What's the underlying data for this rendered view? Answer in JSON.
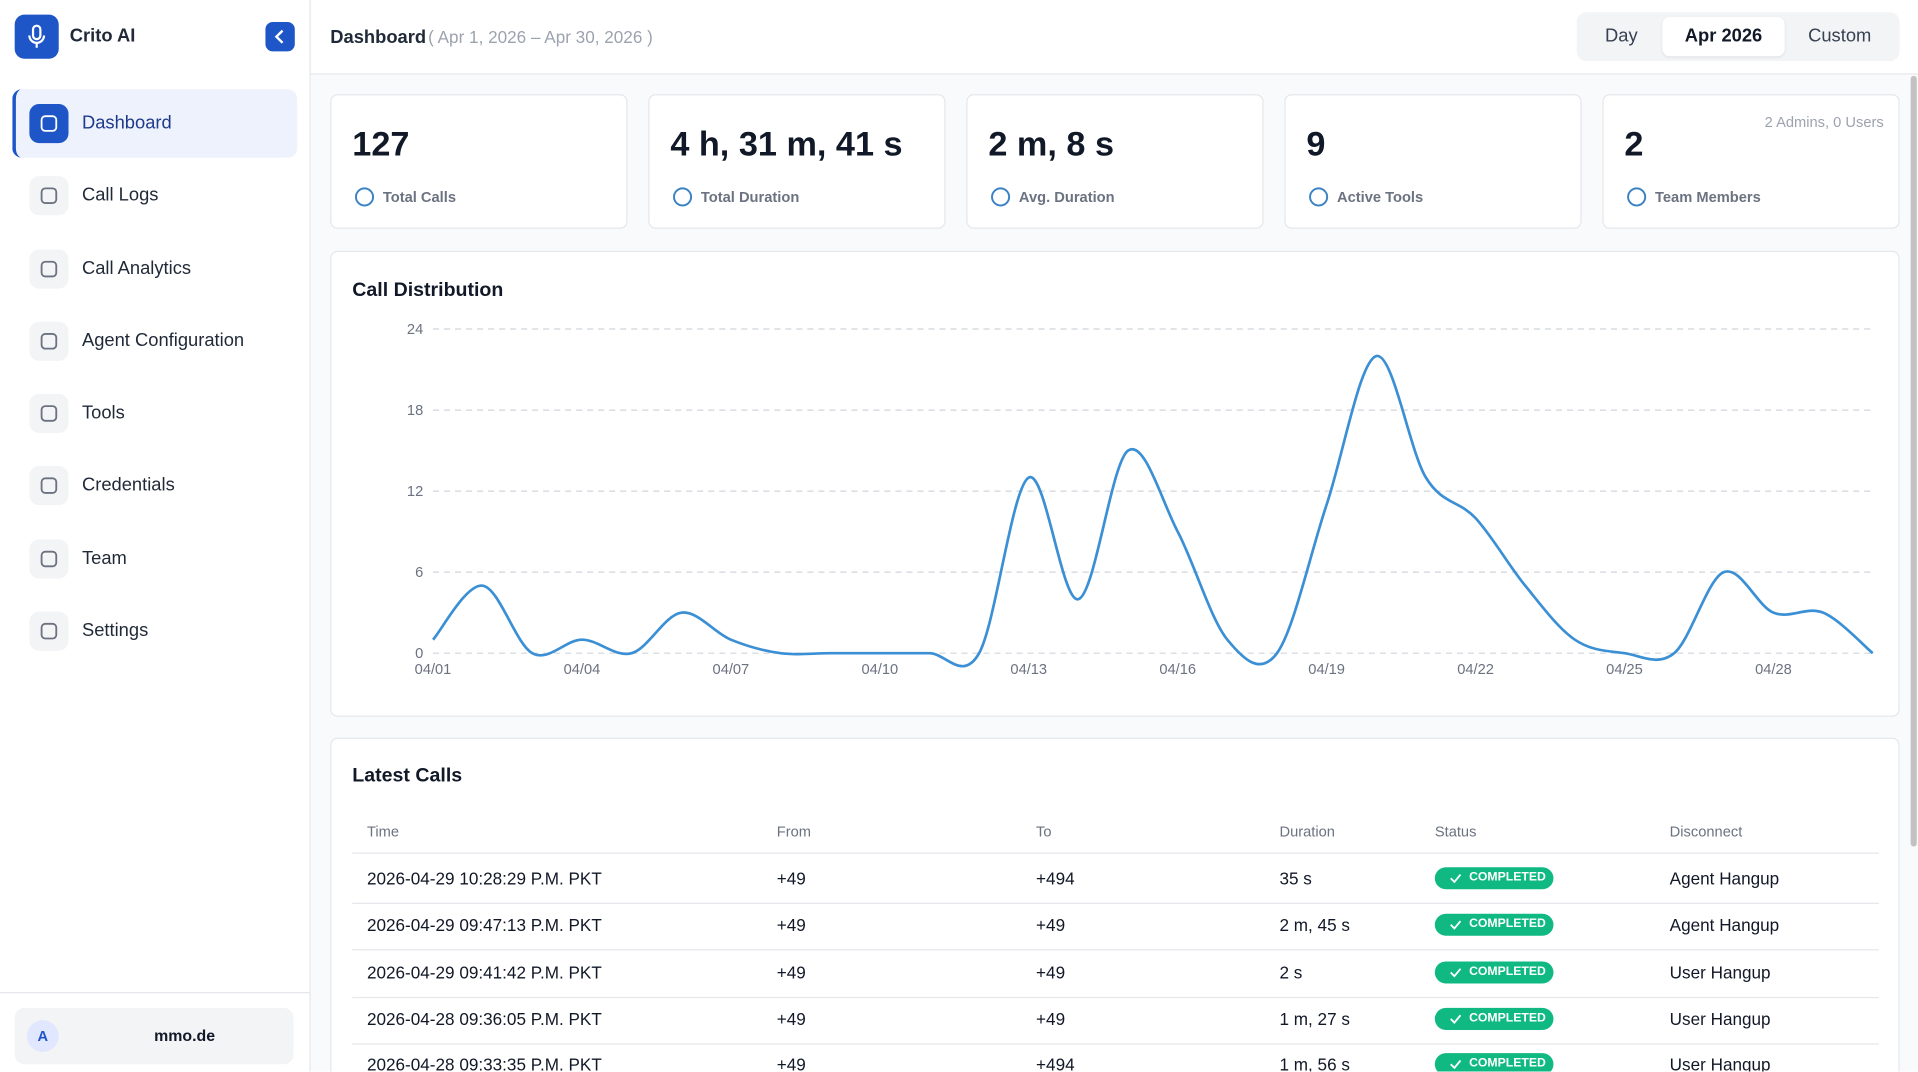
{
  "brand": "Crito AI",
  "nav": [
    {
      "label": "Dashboard",
      "active": true
    },
    {
      "label": "Call Logs"
    },
    {
      "label": "Call Analytics"
    },
    {
      "label": "Agent Configuration"
    },
    {
      "label": "Tools"
    },
    {
      "label": "Credentials"
    },
    {
      "label": "Team"
    },
    {
      "label": "Settings"
    }
  ],
  "user": {
    "initial": "A",
    "email": "mmo.de"
  },
  "header": {
    "title": "Dashboard",
    "range": "( Apr 1, 2026 – Apr 30, 2026 )",
    "periods": [
      "Day",
      "Apr 2026",
      "Custom"
    ],
    "active_period": 1
  },
  "stats": [
    {
      "value": "127",
      "label": "Total Calls"
    },
    {
      "value": "4 h, 31 m, 41 s",
      "label": "Total Duration"
    },
    {
      "value": "2 m, 8 s",
      "label": "Avg. Duration"
    },
    {
      "value": "9",
      "label": "Active Tools"
    },
    {
      "value": "2",
      "label": "Team Members",
      "note": "2 Admins, 0 Users"
    }
  ],
  "chart": {
    "type": "line",
    "title": "Call Distribution",
    "color": "#3b8fd4",
    "grid": true,
    "categories": [
      "04/01",
      null,
      null,
      "04/04",
      null,
      null,
      "04/07",
      null,
      null,
      "04/10",
      null,
      null,
      "04/13",
      null,
      null,
      "04/16",
      null,
      null,
      "04/19",
      null,
      null,
      "04/22",
      null,
      null,
      "04/25",
      null,
      null,
      "04/28",
      null,
      null
    ],
    "values": [
      1,
      5,
      0,
      1,
      0,
      3,
      1,
      0,
      0,
      0,
      0,
      0,
      13,
      4,
      15,
      9,
      1,
      0,
      11,
      22,
      13,
      10,
      5,
      1,
      0,
      0,
      6,
      3,
      3,
      0
    ],
    "ylim": [
      0,
      24
    ],
    "yticks": [
      0,
      6,
      12,
      18,
      24
    ]
  },
  "table": {
    "title": "Latest Calls",
    "columns": [
      "Time",
      "From",
      "To",
      "Duration",
      "Status",
      "Disconnect"
    ],
    "rows": [
      [
        "2026-04-29 10:28:29 P.M. PKT",
        "+49",
        "+494",
        "35 s",
        "COMPLETED",
        "Agent Hangup"
      ],
      [
        "2026-04-29 09:47:13 P.M. PKT",
        "+49",
        "+49",
        "2 m, 45 s",
        "COMPLETED",
        "Agent Hangup"
      ],
      [
        "2026-04-29 09:41:42 P.M. PKT",
        "+49",
        "+49",
        "2 s",
        "COMPLETED",
        "User Hangup"
      ],
      [
        "2026-04-28 09:36:05 P.M. PKT",
        "+49",
        "+49",
        "1 m, 27 s",
        "COMPLETED",
        "User Hangup"
      ],
      [
        "2026-04-28 09:33:35 P.M. PKT",
        "+49",
        "+494",
        "1 m, 56 s",
        "COMPLETED",
        "User Hangup"
      ]
    ]
  }
}
